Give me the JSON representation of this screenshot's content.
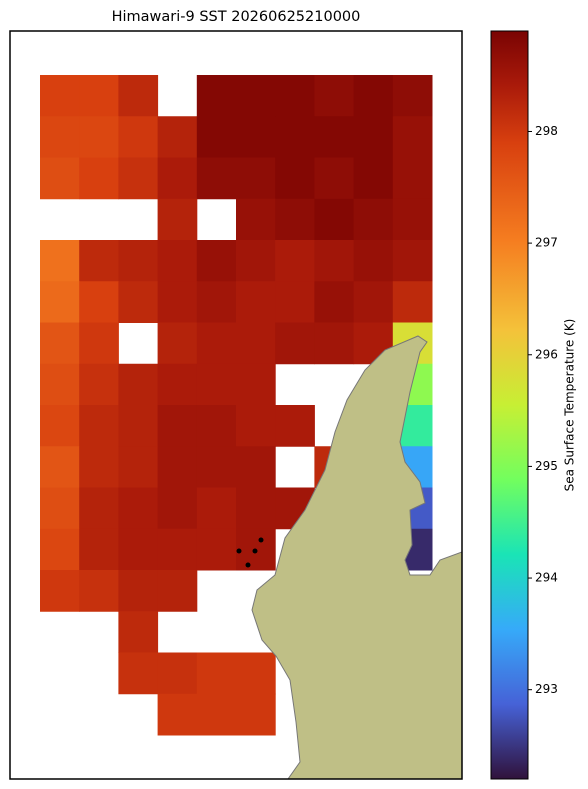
{
  "chart_data": {
    "type": "heatmap",
    "title": "Himawari-9 SST 20260625210000",
    "colorbar_label": "Sea Surface Temperature (K)",
    "clim": [
      292.2,
      298.9
    ],
    "cticks": [
      293,
      294,
      295,
      296,
      297,
      298
    ],
    "values": [
      [
        297.9,
        297.9,
        298.2,
        null,
        298.8,
        298.8,
        298.8,
        298.7,
        298.8,
        298.7
      ],
      [
        297.8,
        297.8,
        298.0,
        298.3,
        298.8,
        298.8,
        298.8,
        298.8,
        298.8,
        298.6
      ],
      [
        297.7,
        297.9,
        298.1,
        298.4,
        298.7,
        298.7,
        298.8,
        298.7,
        298.8,
        298.6
      ],
      [
        null,
        null,
        null,
        298.3,
        null,
        298.6,
        298.7,
        298.8,
        298.7,
        298.6
      ],
      [
        297.2,
        298.2,
        298.3,
        298.4,
        298.6,
        298.5,
        298.4,
        298.5,
        298.6,
        298.5
      ],
      [
        297.3,
        297.9,
        298.2,
        298.4,
        298.5,
        298.4,
        298.4,
        298.6,
        298.5,
        298.2
      ],
      [
        297.6,
        298.0,
        null,
        298.3,
        298.4,
        298.4,
        298.5,
        298.5,
        298.4,
        295.8
      ],
      [
        297.7,
        298.1,
        298.3,
        298.4,
        298.4,
        298.4,
        null,
        null,
        null,
        295.1
      ],
      [
        297.8,
        298.2,
        298.3,
        298.5,
        298.5,
        298.4,
        298.4,
        null,
        null,
        294.4
      ],
      [
        297.6,
        298.2,
        298.3,
        298.5,
        298.5,
        298.5,
        null,
        298.2,
        null,
        293.5
      ],
      [
        297.7,
        298.3,
        298.4,
        298.5,
        298.4,
        298.5,
        298.5,
        null,
        null,
        292.8
      ],
      [
        297.8,
        298.3,
        298.4,
        298.4,
        298.4,
        298.5,
        null,
        null,
        null,
        292.4
      ],
      [
        298.0,
        298.1,
        298.3,
        298.3,
        null,
        null,
        null,
        null,
        null,
        null
      ],
      [
        null,
        null,
        298.2,
        null,
        null,
        null,
        null,
        null,
        null,
        null
      ],
      [
        null,
        null,
        298.1,
        298.1,
        298.0,
        298.0,
        null,
        null,
        null,
        null
      ],
      [
        null,
        null,
        null,
        298.0,
        298.0,
        298.0,
        null,
        null,
        null,
        null
      ]
    ]
  }
}
